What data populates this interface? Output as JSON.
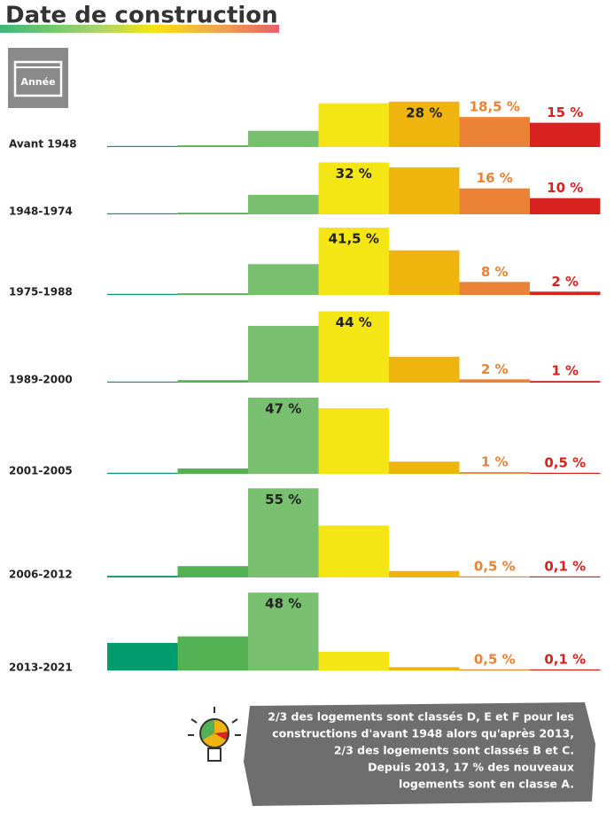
{
  "title": "Date de construction",
  "icon_label": "Année",
  "chart_data": {
    "type": "bar",
    "categories": [
      "Avant 1948",
      "1948-1974",
      "1975-1988",
      "1989-2000",
      "2001-2005",
      "2006-2012",
      "2013-2021"
    ],
    "series": [
      {
        "color": "#009c6d",
        "values": [
          0.3,
          0.3,
          0.3,
          0.3,
          0.3,
          1,
          17
        ]
      },
      {
        "color": "#52b153",
        "values": [
          1,
          1,
          1,
          1.5,
          3.3,
          7,
          21
        ]
      },
      {
        "color": "#78c070",
        "values": [
          10,
          12,
          19,
          35,
          47,
          55,
          48
        ],
        "value_labels": [
          null,
          null,
          null,
          null,
          "47 %",
          "55 %",
          "48 %"
        ]
      },
      {
        "color": "#f4e514",
        "values": [
          27,
          32,
          41.5,
          44,
          40.5,
          32,
          11.5
        ],
        "value_labels": [
          null,
          "32 %",
          "41,5 %",
          "44 %",
          null,
          null,
          null
        ]
      },
      {
        "color": "#f0b40f",
        "values": [
          28,
          29,
          27.5,
          16,
          7.5,
          4,
          2
        ],
        "value_labels": [
          "28 %",
          null,
          null,
          null,
          null,
          null,
          null
        ]
      },
      {
        "color": "#eb8235",
        "values": [
          18.5,
          16,
          8,
          2,
          1,
          0.5,
          0.5
        ],
        "value_labels": [
          "18,5 %",
          "16 %",
          "8 %",
          "2 %",
          "1 %",
          "0,5 %",
          "0,5 %"
        ]
      },
      {
        "color": "#d7221f",
        "values": [
          15,
          10,
          2,
          1,
          0.5,
          0.1,
          0.1
        ],
        "value_labels": [
          "15 %",
          "10 %",
          "2 %",
          "1 %",
          "0,5 %",
          "0,1 %",
          "0,1 %"
        ]
      }
    ]
  },
  "note": [
    "2/3 des logements sont classés D, E et F pour les",
    "constructions d'avant 1948 alors qu'après 2013,",
    "2/3 des logements sont classés B et C.",
    "Depuis 2013, 17 % des nouveaux",
    "logements sont en classe A."
  ]
}
